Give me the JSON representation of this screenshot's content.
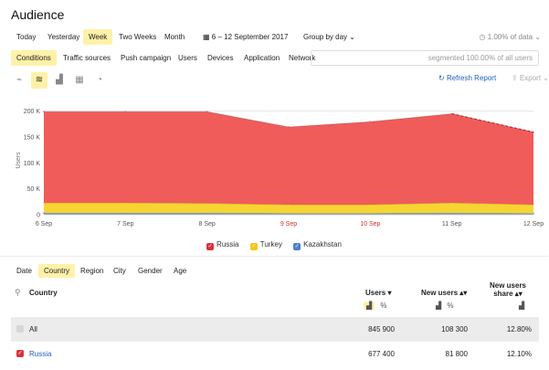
{
  "page": {
    "title": "Audience"
  },
  "period": {
    "buttons": [
      "Today",
      "Yesterday",
      "Week",
      "Two Weeks",
      "Month"
    ],
    "active": "Week",
    "date_range": "6 – 12 September 2017",
    "group_by": "Group by day",
    "sample": "1.00% of data"
  },
  "tabs": {
    "items": [
      "Conditions",
      "Traffic sources",
      "Push campaign",
      "Users",
      "Devices",
      "Application",
      "Network"
    ],
    "active": "Conditions",
    "segment_text": "segmented 100.00% of all users"
  },
  "chart_tools": {
    "refresh_label": "Refresh Report",
    "export_label": "Export"
  },
  "chart_data": {
    "type": "area",
    "stacked": true,
    "x": [
      "6 Sep",
      "7 Sep",
      "8 Sep",
      "9 Sep",
      "10 Sep",
      "11 Sep",
      "12 Sep"
    ],
    "weekend_x": [
      "9 Sep",
      "10 Sep"
    ],
    "ylabel": "Users",
    "yticks": [
      "0",
      "50 K",
      "100 K",
      "150 K",
      "200 K"
    ],
    "ylim": [
      0,
      210000
    ],
    "series": [
      {
        "name": "Kazakhstan",
        "color": "#4a7fd1",
        "values": [
          3000,
          3000,
          3000,
          2500,
          2500,
          3000,
          2500
        ]
      },
      {
        "name": "Turkey",
        "color": "#f5d327",
        "values": [
          20000,
          20000,
          19000,
          17000,
          17000,
          20000,
          17000
        ]
      },
      {
        "name": "Russia",
        "color": "#ef5350",
        "values": [
          176000,
          176000,
          177000,
          150000,
          160000,
          172000,
          140000
        ]
      }
    ],
    "legend_position": "bottom",
    "grid": true
  },
  "legend": [
    "Russia",
    "Turkey",
    "Kazakhstan"
  ],
  "groupings": {
    "items": [
      "Date",
      "Country",
      "Region",
      "City",
      "Gender",
      "Age"
    ],
    "active": "Country"
  },
  "table": {
    "search_header": "Country",
    "columns": [
      {
        "label": "Users",
        "sort": "▾"
      },
      {
        "label": "New users",
        "sort": "▴▾"
      },
      {
        "label": "New users share",
        "sort": "▴▾"
      }
    ],
    "percent_sign": "%",
    "rows": [
      {
        "label": "All",
        "users": "845 900",
        "new_users": "108 300",
        "share": "12.80%"
      },
      {
        "label": "Russia",
        "users": "677 400",
        "new_users": "81 800",
        "share": "12.10%"
      }
    ]
  }
}
